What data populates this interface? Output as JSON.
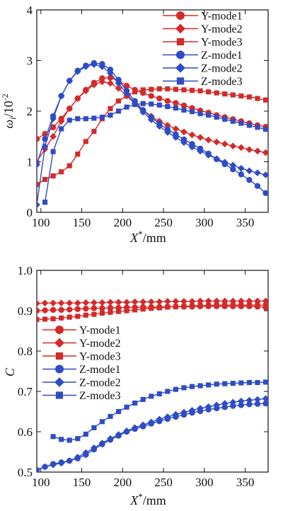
{
  "colors": {
    "y_series": "#d42a2a",
    "z_series": "#2f4cc4",
    "axes": "#111111"
  },
  "chart_data": [
    {
      "type": "line",
      "ylabel_symbol": "ω",
      "ylabel_sub": "i",
      "ylabel_unit": "/10",
      "ylabel_exp": "-2",
      "xlabel_symbol": "X",
      "xlabel_sup": "*",
      "xlabel_unit": "/mm",
      "xlim": [
        95,
        378
      ],
      "ylim": [
        0,
        4
      ],
      "xticks": [
        100,
        150,
        200,
        250,
        300,
        350
      ],
      "yticks": [
        0,
        1,
        2,
        3,
        4
      ],
      "grid": false,
      "legend_position": "top-right",
      "series": [
        {
          "name": "Y-mode1",
          "marker": "circle",
          "color": "#d42a2a",
          "x": [
            95,
            105,
            115,
            125,
            135,
            145,
            155,
            165,
            175,
            185,
            195,
            205,
            215,
            225,
            235,
            245,
            255,
            265,
            275,
            285,
            295,
            305,
            315,
            325,
            335,
            345,
            355,
            365,
            375
          ],
          "y": [
            1.45,
            1.55,
            1.68,
            1.85,
            2.05,
            2.25,
            2.42,
            2.56,
            2.65,
            2.66,
            2.6,
            2.5,
            2.42,
            2.36,
            2.3,
            2.25,
            2.2,
            2.16,
            2.11,
            2.06,
            2.01,
            1.97,
            1.92,
            1.88,
            1.84,
            1.8,
            1.76,
            1.72,
            1.69
          ]
        },
        {
          "name": "Y-mode2",
          "marker": "diamond",
          "color": "#d42a2a",
          "x": [
            95,
            105,
            115,
            125,
            135,
            145,
            155,
            165,
            175,
            185,
            195,
            205,
            215,
            225,
            235,
            245,
            255,
            265,
            275,
            285,
            295,
            305,
            315,
            325,
            335,
            345,
            355,
            365,
            375
          ],
          "y": [
            1.0,
            1.25,
            1.5,
            1.8,
            2.05,
            2.25,
            2.4,
            2.52,
            2.58,
            2.55,
            2.45,
            2.3,
            2.15,
            2.02,
            1.9,
            1.8,
            1.72,
            1.65,
            1.59,
            1.53,
            1.48,
            1.43,
            1.39,
            1.35,
            1.31,
            1.28,
            1.24,
            1.21,
            1.18
          ]
        },
        {
          "name": "Y-mode3",
          "marker": "square",
          "color": "#d42a2a",
          "x": [
            95,
            105,
            115,
            125,
            135,
            145,
            155,
            165,
            175,
            185,
            195,
            205,
            215,
            225,
            235,
            245,
            255,
            265,
            275,
            285,
            295,
            305,
            315,
            325,
            335,
            345,
            355,
            365,
            375
          ],
          "y": [
            0.55,
            0.65,
            0.72,
            0.8,
            0.92,
            1.15,
            1.4,
            1.6,
            1.85,
            2.05,
            2.2,
            2.3,
            2.38,
            2.42,
            2.43,
            2.44,
            2.44,
            2.43,
            2.42,
            2.41,
            2.4,
            2.38,
            2.36,
            2.34,
            2.32,
            2.3,
            2.28,
            2.25,
            2.22
          ]
        },
        {
          "name": "Z-mode1",
          "marker": "circle",
          "color": "#2f4cc4",
          "x": [
            95,
            105,
            115,
            125,
            135,
            145,
            155,
            165,
            175,
            185,
            195,
            205,
            215,
            225,
            235,
            245,
            255,
            265,
            275,
            285,
            295,
            305,
            315,
            325,
            335,
            345,
            355,
            365,
            375
          ],
          "y": [
            0.95,
            1.45,
            1.9,
            2.3,
            2.6,
            2.8,
            2.9,
            2.95,
            2.93,
            2.82,
            2.62,
            2.4,
            2.2,
            2.02,
            1.88,
            1.75,
            1.64,
            1.54,
            1.44,
            1.35,
            1.26,
            1.16,
            1.05,
            0.95,
            0.85,
            0.75,
            0.64,
            0.52,
            0.38
          ]
        },
        {
          "name": "Z-mode2",
          "marker": "diamond",
          "color": "#2f4cc4",
          "x": [
            95,
            105,
            115,
            125,
            135,
            145,
            155,
            165,
            175,
            185,
            195,
            205,
            215,
            225,
            235,
            245,
            255,
            265,
            275,
            285,
            295,
            305,
            315,
            325,
            335,
            345,
            355,
            365,
            375
          ],
          "y": [
            0.15,
            1.3,
            1.85,
            2.3,
            2.6,
            2.78,
            2.88,
            2.92,
            2.88,
            2.75,
            2.55,
            2.35,
            2.15,
            1.98,
            1.83,
            1.7,
            1.58,
            1.48,
            1.38,
            1.29,
            1.21,
            1.13,
            1.06,
            0.99,
            0.93,
            0.87,
            0.82,
            0.78,
            0.74
          ]
        },
        {
          "name": "Z-mode3",
          "marker": "square",
          "color": "#2f4cc4",
          "x": [
            105,
            115,
            125,
            135,
            145,
            155,
            165,
            175,
            185,
            195,
            205,
            215,
            225,
            235,
            245,
            255,
            265,
            275,
            285,
            295,
            305,
            315,
            325,
            335,
            345,
            355,
            365,
            375
          ],
          "y": [
            0.2,
            1.2,
            1.65,
            1.82,
            1.85,
            1.85,
            1.86,
            1.88,
            1.92,
            2.0,
            2.08,
            2.13,
            2.15,
            2.14,
            2.12,
            2.09,
            2.06,
            2.02,
            1.99,
            1.95,
            1.92,
            1.88,
            1.84,
            1.8,
            1.76,
            1.72,
            1.68,
            1.64
          ]
        }
      ]
    },
    {
      "type": "line",
      "ylabel": "C",
      "xlabel_symbol": "X",
      "xlabel_sup": "*",
      "xlabel_unit": "/mm",
      "xlim": [
        95,
        378
      ],
      "ylim": [
        0.5,
        1.0
      ],
      "xticks": [
        100,
        150,
        200,
        250,
        300,
        350
      ],
      "yticks": [
        0.5,
        0.6,
        0.7,
        0.8,
        0.9,
        1.0
      ],
      "ytick_labels": [
        "0.5",
        "0.6",
        "0.7",
        "0.8",
        "0.9",
        "1.0"
      ],
      "grid": false,
      "legend_position": "left-middle",
      "series": [
        {
          "name": "Y-mode1",
          "marker": "circle",
          "color": "#d42a2a",
          "x": [
            95,
            105,
            115,
            125,
            135,
            145,
            155,
            165,
            175,
            185,
            195,
            205,
            215,
            225,
            235,
            245,
            255,
            265,
            275,
            285,
            295,
            305,
            315,
            325,
            335,
            345,
            355,
            365,
            375
          ],
          "y": [
            0.9,
            0.901,
            0.902,
            0.902,
            0.903,
            0.904,
            0.905,
            0.906,
            0.906,
            0.907,
            0.907,
            0.908,
            0.908,
            0.909,
            0.909,
            0.909,
            0.91,
            0.91,
            0.91,
            0.91,
            0.911,
            0.911,
            0.911,
            0.911,
            0.911,
            0.911,
            0.911,
            0.91,
            0.908
          ]
        },
        {
          "name": "Y-mode2",
          "marker": "diamond",
          "color": "#d42a2a",
          "x": [
            95,
            105,
            115,
            125,
            135,
            145,
            155,
            165,
            175,
            185,
            195,
            205,
            215,
            225,
            235,
            245,
            255,
            265,
            275,
            285,
            295,
            305,
            315,
            325,
            335,
            345,
            355,
            365,
            375
          ],
          "y": [
            0.918,
            0.919,
            0.919,
            0.919,
            0.919,
            0.919,
            0.92,
            0.92,
            0.92,
            0.921,
            0.921,
            0.921,
            0.922,
            0.922,
            0.922,
            0.922,
            0.923,
            0.923,
            0.923,
            0.923,
            0.924,
            0.924,
            0.924,
            0.924,
            0.924,
            0.924,
            0.924,
            0.924,
            0.924
          ]
        },
        {
          "name": "Y-mode3",
          "marker": "square",
          "color": "#d42a2a",
          "x": [
            95,
            105,
            115,
            125,
            135,
            145,
            155,
            165,
            175,
            185,
            195,
            205,
            215,
            225,
            235,
            245,
            255,
            265,
            275,
            285,
            295,
            305,
            315,
            325,
            335,
            345,
            355,
            365,
            375
          ],
          "y": [
            0.878,
            0.879,
            0.88,
            0.882,
            0.884,
            0.886,
            0.889,
            0.891,
            0.894,
            0.896,
            0.898,
            0.9,
            0.902,
            0.904,
            0.906,
            0.907,
            0.909,
            0.91,
            0.911,
            0.912,
            0.913,
            0.913,
            0.914,
            0.914,
            0.914,
            0.914,
            0.914,
            0.914,
            0.913
          ]
        },
        {
          "name": "Z-mode1",
          "marker": "circle",
          "color": "#2f4cc4",
          "x": [
            95,
            105,
            115,
            125,
            135,
            145,
            155,
            165,
            175,
            185,
            195,
            205,
            215,
            225,
            235,
            245,
            255,
            265,
            275,
            285,
            295,
            305,
            315,
            325,
            335,
            345,
            355,
            365,
            375
          ],
          "y": [
            0.505,
            0.513,
            0.52,
            0.524,
            0.528,
            0.534,
            0.543,
            0.556,
            0.569,
            0.58,
            0.59,
            0.6,
            0.607,
            0.613,
            0.62,
            0.626,
            0.632,
            0.637,
            0.642,
            0.647,
            0.651,
            0.655,
            0.658,
            0.661,
            0.664,
            0.666,
            0.668,
            0.669,
            0.67
          ]
        },
        {
          "name": "Z-mode2",
          "marker": "diamond",
          "color": "#2f4cc4",
          "x": [
            95,
            105,
            115,
            125,
            135,
            145,
            155,
            165,
            175,
            185,
            195,
            205,
            215,
            225,
            235,
            245,
            255,
            265,
            275,
            285,
            295,
            305,
            315,
            325,
            335,
            345,
            355,
            365,
            375
          ],
          "y": [
            0.506,
            0.513,
            0.518,
            0.522,
            0.528,
            0.537,
            0.548,
            0.56,
            0.572,
            0.583,
            0.593,
            0.602,
            0.61,
            0.617,
            0.624,
            0.631,
            0.637,
            0.643,
            0.648,
            0.653,
            0.658,
            0.662,
            0.666,
            0.67,
            0.673,
            0.676,
            0.678,
            0.68,
            0.682
          ]
        },
        {
          "name": "Z-mode3",
          "marker": "square",
          "color": "#2f4cc4",
          "x": [
            115,
            125,
            135,
            145,
            155,
            165,
            175,
            185,
            195,
            205,
            215,
            225,
            235,
            245,
            255,
            265,
            275,
            285,
            295,
            305,
            315,
            325,
            335,
            345,
            355,
            365,
            375
          ],
          "y": [
            0.588,
            0.581,
            0.579,
            0.583,
            0.594,
            0.61,
            0.625,
            0.638,
            0.65,
            0.661,
            0.671,
            0.68,
            0.688,
            0.694,
            0.7,
            0.705,
            0.709,
            0.712,
            0.714,
            0.716,
            0.718,
            0.719,
            0.72,
            0.721,
            0.722,
            0.722,
            0.723
          ]
        }
      ]
    }
  ]
}
